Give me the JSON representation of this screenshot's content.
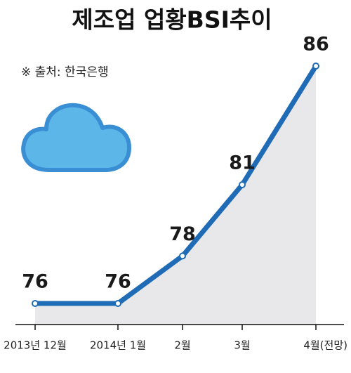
{
  "chart_data": {
    "type": "line",
    "title": "제조업 업황BSI추이",
    "source": "※ 출처: 한국은행",
    "categories": [
      "2013년 12월",
      "2014년 1월",
      "2월",
      "3월",
      "4월(전망)"
    ],
    "values": [
      76,
      76,
      78,
      81,
      86
    ],
    "color": "#1f6bb5",
    "area_color": "#e8e8ea"
  }
}
